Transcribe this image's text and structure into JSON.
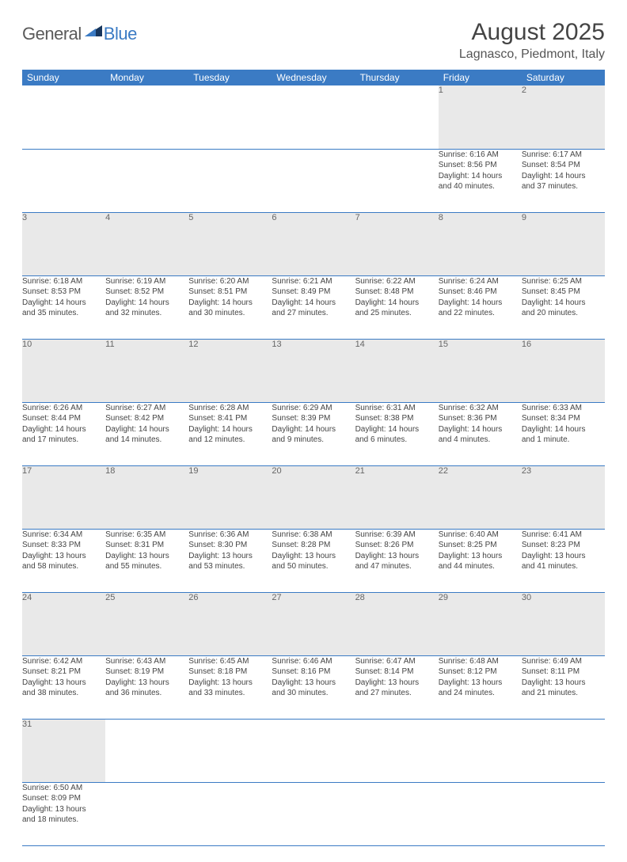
{
  "brand": {
    "part1": "General",
    "part2": "Blue",
    "accent": "#3b7bc4",
    "text_color": "#5a5a5a"
  },
  "title": "August 2025",
  "subtitle": "Lagnasco, Piedmont, Italy",
  "colors": {
    "header_bg": "#3b7bc4",
    "header_fg": "#ffffff",
    "daynum_bg": "#e9e9e9",
    "daynum_fg": "#666666",
    "rule": "#3b7bc4",
    "body_text": "#444444",
    "page_bg": "#ffffff"
  },
  "typography": {
    "title_fontsize": 30,
    "subtitle_fontsize": 16,
    "header_fontsize": 12,
    "daynum_fontsize": 11,
    "detail_fontsize": 10
  },
  "weekdays": [
    "Sunday",
    "Monday",
    "Tuesday",
    "Wednesday",
    "Thursday",
    "Friday",
    "Saturday"
  ],
  "weeks": [
    [
      null,
      null,
      null,
      null,
      null,
      {
        "d": "1",
        "sunrise": "Sunrise: 6:16 AM",
        "sunset": "Sunset: 8:56 PM",
        "daylight1": "Daylight: 14 hours",
        "daylight2": "and 40 minutes."
      },
      {
        "d": "2",
        "sunrise": "Sunrise: 6:17 AM",
        "sunset": "Sunset: 8:54 PM",
        "daylight1": "Daylight: 14 hours",
        "daylight2": "and 37 minutes."
      }
    ],
    [
      {
        "d": "3",
        "sunrise": "Sunrise: 6:18 AM",
        "sunset": "Sunset: 8:53 PM",
        "daylight1": "Daylight: 14 hours",
        "daylight2": "and 35 minutes."
      },
      {
        "d": "4",
        "sunrise": "Sunrise: 6:19 AM",
        "sunset": "Sunset: 8:52 PM",
        "daylight1": "Daylight: 14 hours",
        "daylight2": "and 32 minutes."
      },
      {
        "d": "5",
        "sunrise": "Sunrise: 6:20 AM",
        "sunset": "Sunset: 8:51 PM",
        "daylight1": "Daylight: 14 hours",
        "daylight2": "and 30 minutes."
      },
      {
        "d": "6",
        "sunrise": "Sunrise: 6:21 AM",
        "sunset": "Sunset: 8:49 PM",
        "daylight1": "Daylight: 14 hours",
        "daylight2": "and 27 minutes."
      },
      {
        "d": "7",
        "sunrise": "Sunrise: 6:22 AM",
        "sunset": "Sunset: 8:48 PM",
        "daylight1": "Daylight: 14 hours",
        "daylight2": "and 25 minutes."
      },
      {
        "d": "8",
        "sunrise": "Sunrise: 6:24 AM",
        "sunset": "Sunset: 8:46 PM",
        "daylight1": "Daylight: 14 hours",
        "daylight2": "and 22 minutes."
      },
      {
        "d": "9",
        "sunrise": "Sunrise: 6:25 AM",
        "sunset": "Sunset: 8:45 PM",
        "daylight1": "Daylight: 14 hours",
        "daylight2": "and 20 minutes."
      }
    ],
    [
      {
        "d": "10",
        "sunrise": "Sunrise: 6:26 AM",
        "sunset": "Sunset: 8:44 PM",
        "daylight1": "Daylight: 14 hours",
        "daylight2": "and 17 minutes."
      },
      {
        "d": "11",
        "sunrise": "Sunrise: 6:27 AM",
        "sunset": "Sunset: 8:42 PM",
        "daylight1": "Daylight: 14 hours",
        "daylight2": "and 14 minutes."
      },
      {
        "d": "12",
        "sunrise": "Sunrise: 6:28 AM",
        "sunset": "Sunset: 8:41 PM",
        "daylight1": "Daylight: 14 hours",
        "daylight2": "and 12 minutes."
      },
      {
        "d": "13",
        "sunrise": "Sunrise: 6:29 AM",
        "sunset": "Sunset: 8:39 PM",
        "daylight1": "Daylight: 14 hours",
        "daylight2": "and 9 minutes."
      },
      {
        "d": "14",
        "sunrise": "Sunrise: 6:31 AM",
        "sunset": "Sunset: 8:38 PM",
        "daylight1": "Daylight: 14 hours",
        "daylight2": "and 6 minutes."
      },
      {
        "d": "15",
        "sunrise": "Sunrise: 6:32 AM",
        "sunset": "Sunset: 8:36 PM",
        "daylight1": "Daylight: 14 hours",
        "daylight2": "and 4 minutes."
      },
      {
        "d": "16",
        "sunrise": "Sunrise: 6:33 AM",
        "sunset": "Sunset: 8:34 PM",
        "daylight1": "Daylight: 14 hours",
        "daylight2": "and 1 minute."
      }
    ],
    [
      {
        "d": "17",
        "sunrise": "Sunrise: 6:34 AM",
        "sunset": "Sunset: 8:33 PM",
        "daylight1": "Daylight: 13 hours",
        "daylight2": "and 58 minutes."
      },
      {
        "d": "18",
        "sunrise": "Sunrise: 6:35 AM",
        "sunset": "Sunset: 8:31 PM",
        "daylight1": "Daylight: 13 hours",
        "daylight2": "and 55 minutes."
      },
      {
        "d": "19",
        "sunrise": "Sunrise: 6:36 AM",
        "sunset": "Sunset: 8:30 PM",
        "daylight1": "Daylight: 13 hours",
        "daylight2": "and 53 minutes."
      },
      {
        "d": "20",
        "sunrise": "Sunrise: 6:38 AM",
        "sunset": "Sunset: 8:28 PM",
        "daylight1": "Daylight: 13 hours",
        "daylight2": "and 50 minutes."
      },
      {
        "d": "21",
        "sunrise": "Sunrise: 6:39 AM",
        "sunset": "Sunset: 8:26 PM",
        "daylight1": "Daylight: 13 hours",
        "daylight2": "and 47 minutes."
      },
      {
        "d": "22",
        "sunrise": "Sunrise: 6:40 AM",
        "sunset": "Sunset: 8:25 PM",
        "daylight1": "Daylight: 13 hours",
        "daylight2": "and 44 minutes."
      },
      {
        "d": "23",
        "sunrise": "Sunrise: 6:41 AM",
        "sunset": "Sunset: 8:23 PM",
        "daylight1": "Daylight: 13 hours",
        "daylight2": "and 41 minutes."
      }
    ],
    [
      {
        "d": "24",
        "sunrise": "Sunrise: 6:42 AM",
        "sunset": "Sunset: 8:21 PM",
        "daylight1": "Daylight: 13 hours",
        "daylight2": "and 38 minutes."
      },
      {
        "d": "25",
        "sunrise": "Sunrise: 6:43 AM",
        "sunset": "Sunset: 8:19 PM",
        "daylight1": "Daylight: 13 hours",
        "daylight2": "and 36 minutes."
      },
      {
        "d": "26",
        "sunrise": "Sunrise: 6:45 AM",
        "sunset": "Sunset: 8:18 PM",
        "daylight1": "Daylight: 13 hours",
        "daylight2": "and 33 minutes."
      },
      {
        "d": "27",
        "sunrise": "Sunrise: 6:46 AM",
        "sunset": "Sunset: 8:16 PM",
        "daylight1": "Daylight: 13 hours",
        "daylight2": "and 30 minutes."
      },
      {
        "d": "28",
        "sunrise": "Sunrise: 6:47 AM",
        "sunset": "Sunset: 8:14 PM",
        "daylight1": "Daylight: 13 hours",
        "daylight2": "and 27 minutes."
      },
      {
        "d": "29",
        "sunrise": "Sunrise: 6:48 AM",
        "sunset": "Sunset: 8:12 PM",
        "daylight1": "Daylight: 13 hours",
        "daylight2": "and 24 minutes."
      },
      {
        "d": "30",
        "sunrise": "Sunrise: 6:49 AM",
        "sunset": "Sunset: 8:11 PM",
        "daylight1": "Daylight: 13 hours",
        "daylight2": "and 21 minutes."
      }
    ],
    [
      {
        "d": "31",
        "sunrise": "Sunrise: 6:50 AM",
        "sunset": "Sunset: 8:09 PM",
        "daylight1": "Daylight: 13 hours",
        "daylight2": "and 18 minutes."
      },
      null,
      null,
      null,
      null,
      null,
      null
    ]
  ]
}
